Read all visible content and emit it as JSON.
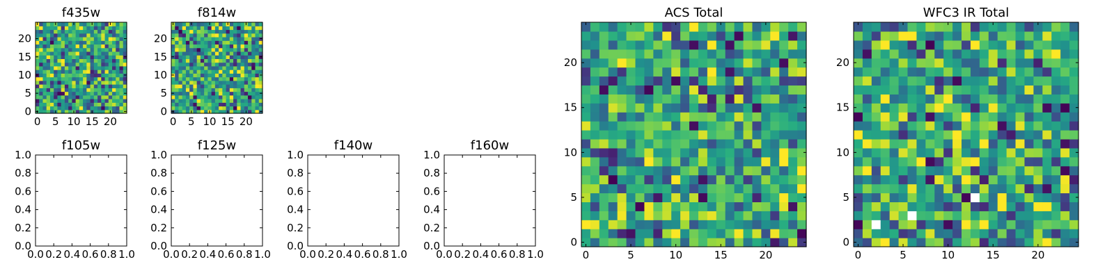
{
  "chart_data": [
    {
      "type": "heatmap",
      "title": "f435w",
      "xticks": [
        "0",
        "5",
        "10",
        "15",
        "20"
      ],
      "yticks": [
        "0",
        "5",
        "10",
        "15",
        "20"
      ],
      "xlim": [
        -0.5,
        24.5
      ],
      "ylim": [
        -0.5,
        24.5
      ],
      "grid_size": 25,
      "colormap": "viridis",
      "seed": 11,
      "values_note": "pixel values not readable; pseudo-random field with mostly green/yellow and scattered dark purple cells"
    },
    {
      "type": "heatmap",
      "title": "f814w",
      "xticks": [
        "0",
        "5",
        "10",
        "15",
        "20"
      ],
      "yticks": [
        "0",
        "5",
        "10",
        "15",
        "20"
      ],
      "xlim": [
        -0.5,
        24.5
      ],
      "ylim": [
        -0.5,
        24.5
      ],
      "grid_size": 25,
      "colormap": "viridis",
      "seed": 23,
      "values_note": "pixel values not readable; pseudo-random field"
    },
    {
      "type": "empty",
      "title": "f105w",
      "xticks": [
        "0.0",
        "0.2",
        "0.4",
        "0.6",
        "0.8",
        "1.0"
      ],
      "yticks": [
        "0.0",
        "0.2",
        "0.4",
        "0.6",
        "0.8",
        "1.0"
      ],
      "xlim": [
        0,
        1
      ],
      "ylim": [
        0,
        1
      ]
    },
    {
      "type": "empty",
      "title": "f125w",
      "xticks": [
        "0.0",
        "0.2",
        "0.4",
        "0.6",
        "0.8",
        "1.0"
      ],
      "yticks": [
        "0.0",
        "0.2",
        "0.4",
        "0.6",
        "0.8",
        "1.0"
      ],
      "xlim": [
        0,
        1
      ],
      "ylim": [
        0,
        1
      ]
    },
    {
      "type": "empty",
      "title": "f140w",
      "xticks": [
        "0.0",
        "0.2",
        "0.4",
        "0.6",
        "0.8",
        "1.0"
      ],
      "yticks": [
        "0.0",
        "0.2",
        "0.4",
        "0.6",
        "0.8",
        "1.0"
      ],
      "xlim": [
        0,
        1
      ],
      "ylim": [
        0,
        1
      ]
    },
    {
      "type": "empty",
      "title": "f160w",
      "xticks": [
        "0.0",
        "0.2",
        "0.4",
        "0.6",
        "0.8",
        "1.0"
      ],
      "yticks": [
        "0.0",
        "0.2",
        "0.4",
        "0.6",
        "0.8",
        "1.0"
      ],
      "xlim": [
        0,
        1
      ],
      "ylim": [
        0,
        1
      ]
    },
    {
      "type": "heatmap",
      "title": "ACS Total",
      "xticks": [
        "0",
        "5",
        "10",
        "15",
        "20"
      ],
      "yticks": [
        "0",
        "5",
        "10",
        "15",
        "20"
      ],
      "xlim": [
        -0.5,
        24.5
      ],
      "ylim": [
        -0.5,
        24.5
      ],
      "grid_size": 25,
      "colormap": "viridis",
      "seed": 37,
      "values_note": "pixel values not readable; pseudo-random field"
    },
    {
      "type": "heatmap",
      "title": "WFC3 IR Total",
      "xticks": [
        "0",
        "5",
        "10",
        "15",
        "20"
      ],
      "yticks": [
        "0",
        "5",
        "10",
        "15",
        "20"
      ],
      "xlim": [
        -0.5,
        24.5
      ],
      "ylim": [
        -0.5,
        24.5
      ],
      "grid_size": 25,
      "colormap": "viridis",
      "seed": 53,
      "masked_cells": [
        [
          2,
          2
        ],
        [
          6,
          3
        ],
        [
          13,
          5
        ]
      ],
      "masked_color": "#ffffff",
      "values_note": "pixel values not readable; pseudo-random field with a few blank (masked) cells"
    }
  ]
}
